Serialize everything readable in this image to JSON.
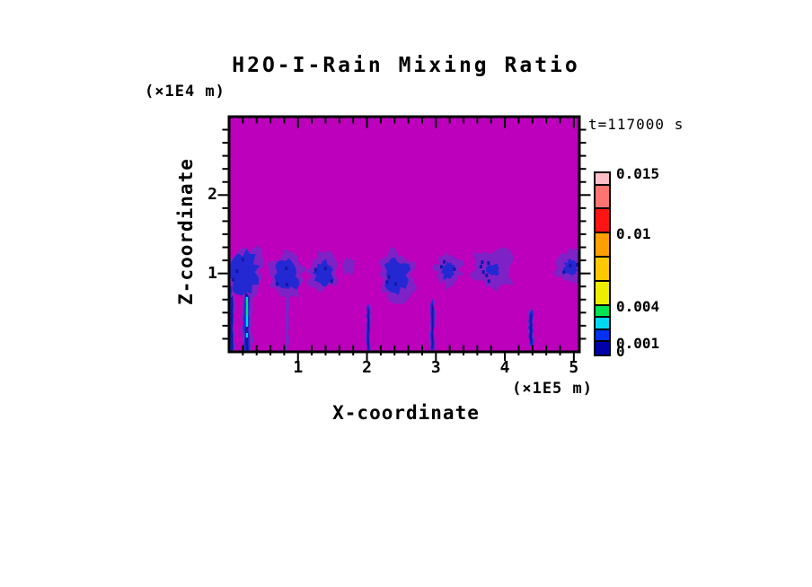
{
  "title": "H2O-I-Rain Mixing Ratio",
  "timestamp": "t=117000 s",
  "axes": {
    "z_unit_label": "(×1E4 m)",
    "z_axis_label": "Z-coordinate",
    "x_axis_label": "X-coordinate",
    "x_unit_label": "(×1E5 m)"
  },
  "chart_data": {
    "type": "heatmap",
    "title": "H2O-I-Rain Mixing Ratio",
    "annotation": "t=117000 s",
    "xlabel": "X-coordinate",
    "x_unit": "(×1E5 m)",
    "zlabel": "Z-coordinate",
    "z_unit": "(×1E4 m)",
    "xlim": [
      0,
      5.08
    ],
    "zlim": [
      0,
      3.0
    ],
    "x_major_ticks": [
      1,
      2,
      3,
      4,
      5
    ],
    "x_minor_step": 0.2,
    "z_major_ticks": [
      1,
      2
    ],
    "z_minor_step": 0.1667,
    "grid": false,
    "background_color": "#BC00BC",
    "background_meaning": "mixing ratio below lowest plotted contour",
    "colorbar": {
      "position": "right",
      "levels": [
        0,
        0.001,
        0.002,
        0.003,
        0.004,
        0.006,
        0.008,
        0.01,
        0.012,
        0.014,
        0.015
      ],
      "colors_bottom_to_top": [
        "#0000AA",
        "#0032F0",
        "#00D8F0",
        "#00E452",
        "#EDED00",
        "#FFC800",
        "#FFA000",
        "#FF1414",
        "#FF7373",
        "#FFBEC8"
      ],
      "labels": [
        {
          "text": "0.015",
          "value": 0.015
        },
        {
          "text": "0.01",
          "value": 0.01
        },
        {
          "text": "0.004",
          "value": 0.004
        },
        {
          "text": "0.001",
          "value": 0.001
        },
        {
          "text": "0",
          "value": 0
        }
      ]
    },
    "features": {
      "colors": {
        "fringe": "#7E22C8",
        "core": "#2428D2",
        "dark": "#1217A8",
        "cyan": "#00D2F0",
        "green": "#00E45A"
      },
      "rain_cells": [
        {
          "x": 0.22,
          "z": 1.03,
          "rx": 0.3,
          "rz": 0.36,
          "core": 0.72,
          "seed": 3
        },
        {
          "x": 0.84,
          "z": 0.98,
          "rx": 0.27,
          "rz": 0.3,
          "core": 0.65,
          "seed": 11
        },
        {
          "x": 1.38,
          "z": 1.02,
          "rx": 0.24,
          "rz": 0.25,
          "core": 0.6,
          "seed": 23
        },
        {
          "x": 1.74,
          "z": 1.09,
          "rx": 0.1,
          "rz": 0.11,
          "core": 0,
          "seed": 31
        },
        {
          "x": 2.43,
          "z": 0.99,
          "rx": 0.27,
          "rz": 0.32,
          "core": 0.68,
          "seed": 41
        },
        {
          "x": 3.18,
          "z": 1.05,
          "rx": 0.2,
          "rz": 0.22,
          "core": 0.5,
          "seed": 53
        },
        {
          "x": 3.83,
          "z": 1.06,
          "rx": 0.33,
          "rz": 0.25,
          "core": 0.3,
          "seed": 61,
          "specks": 6
        },
        {
          "x": 4.96,
          "z": 1.08,
          "rx": 0.21,
          "rz": 0.22,
          "core": 0.5,
          "seed": 71
        }
      ],
      "rain_shafts": [
        {
          "x": 0.04,
          "hw": 0.05,
          "z_top": 0.92,
          "z_bot": 0.0,
          "kind": "blue",
          "seed": 5
        },
        {
          "x": 0.26,
          "hw": 0.07,
          "z_top": 0.88,
          "z_bot": 0.0,
          "kind": "blue",
          "seed": 7,
          "core_line": true
        },
        {
          "x": 0.84,
          "hw": 0.03,
          "z_top": 0.72,
          "z_bot": 0.0,
          "kind": "purple",
          "seed": 13
        },
        {
          "x": 2.02,
          "hw": 0.035,
          "z_top": 0.62,
          "z_bot": 0.0,
          "kind": "blue",
          "seed": 17
        },
        {
          "x": 2.95,
          "hw": 0.04,
          "z_top": 0.68,
          "z_bot": 0.02,
          "kind": "blue",
          "seed": 19
        },
        {
          "x": 4.38,
          "hw": 0.045,
          "z_top": 0.55,
          "z_bot": 0.08,
          "kind": "blue",
          "seed": 29
        }
      ]
    }
  }
}
